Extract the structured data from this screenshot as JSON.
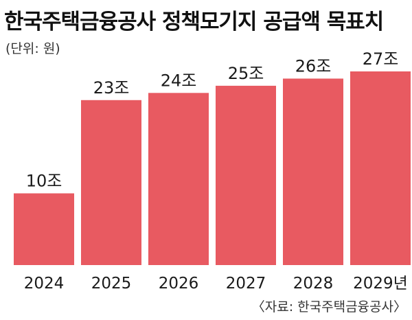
{
  "header": {
    "title": "한국주택금융공사 정책모기지 공급액 목표치",
    "unit": "(단위: 원)"
  },
  "footer": {
    "source": "〈자료: 한국주택금융공사〉"
  },
  "chart_data": {
    "type": "bar",
    "categories": [
      "2024",
      "2025",
      "2026",
      "2027",
      "2028",
      "2029년"
    ],
    "values": [
      10,
      23,
      24,
      25,
      26,
      27
    ],
    "value_labels": [
      "10조",
      "23조",
      "24조",
      "25조",
      "26조",
      "27조"
    ],
    "ylim": [
      0,
      27
    ],
    "grid": false,
    "legend": "none",
    "bar_color": "#e85a61"
  }
}
